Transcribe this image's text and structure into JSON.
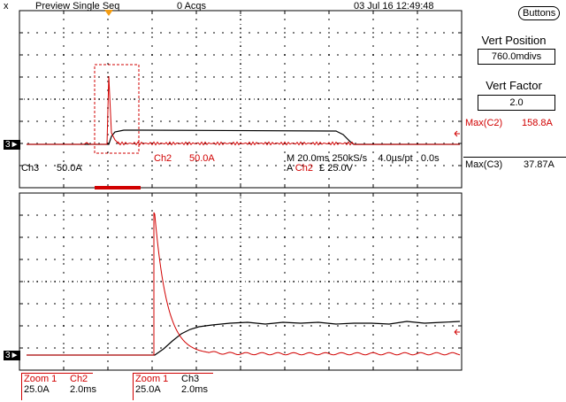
{
  "header": {
    "close_glyph": "x",
    "mode": "Preview Single Seq",
    "acqs": "0 Acqs",
    "datetime": "03 Jul 16 12:49:48",
    "buttons_label": "Buttons"
  },
  "side_panel": {
    "vert_position_label": "Vert Position",
    "vert_position_value": "760.0mdivs",
    "vert_factor_label": "Vert Factor",
    "vert_factor_value": "2.0",
    "max_c2_label": "Max(C2)",
    "max_c2_value": "158.8A",
    "max_c3_label": "Max(C3)",
    "max_c3_value": "37.87A"
  },
  "top_readout": {
    "ch3_label": "Ch3",
    "ch3_scale": "50.0A",
    "ch2_label": "Ch2",
    "ch2_scale": "50.0A",
    "timebase_line1": "M 20.0ms 250kS/s    4.0µs/pt   0.0s",
    "trigger_prefix": "A",
    "trigger_ch": "Ch2",
    "trigger_slope": "£",
    "trigger_level": "25.0V"
  },
  "bottom_readout": {
    "zoom1_a_label": "Zoom 1",
    "zoom1_a_scale": "25.0A",
    "zoom1_a_ch": "Ch2",
    "zoom1_a_time": "2.0ms",
    "zoom1_b_label": "Zoom 1",
    "zoom1_b_scale": "25.0A",
    "zoom1_b_ch": "Ch3",
    "zoom1_b_time": "2.0ms"
  },
  "markers": {
    "ch3_top": "3",
    "ch3_bottom": "3"
  },
  "colors": {
    "ch2": "#d10000",
    "ch3": "#000000",
    "grid": "#000000"
  }
}
